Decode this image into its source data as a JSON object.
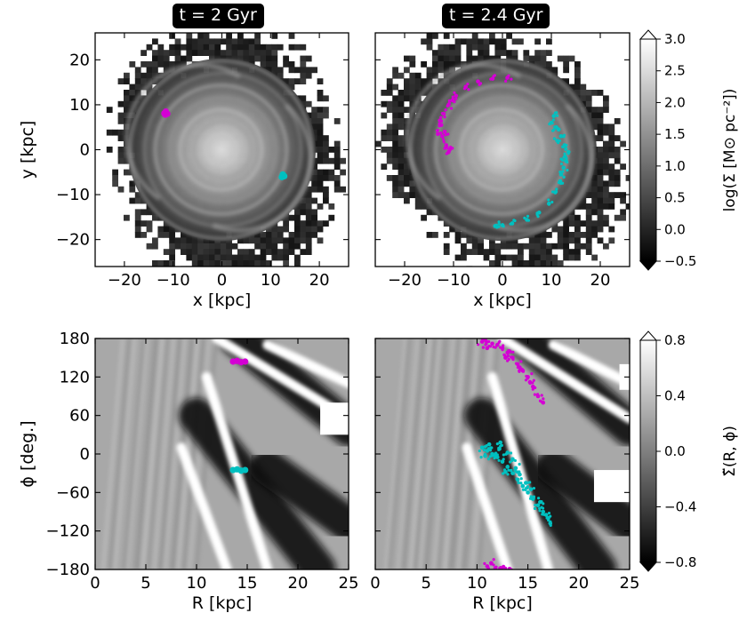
{
  "panels": [
    {
      "id": "top-left",
      "title": "t = 2 Gyr",
      "xlabel": "x [kpc]",
      "ylabel": "y [kpc]",
      "xlim": [
        -26,
        26
      ],
      "ylim": [
        -26,
        26
      ],
      "xticks": [
        -20,
        -10,
        0,
        10,
        20
      ],
      "yticks": [
        -20,
        -10,
        0,
        10,
        20
      ],
      "xtick_labels": [
        "−20",
        "−10",
        "0",
        "10",
        "20"
      ],
      "ytick_labels": [
        "−20",
        "−10",
        "0",
        "10",
        "20"
      ]
    },
    {
      "id": "top-right",
      "title": "t = 2.4 Gyr",
      "xlabel": "x [kpc]",
      "ylabel": "",
      "xlim": [
        -26,
        26
      ],
      "ylim": [
        -26,
        26
      ],
      "xticks": [
        -20,
        -10,
        0,
        10,
        20
      ],
      "yticks": [
        -20,
        -10,
        0,
        10,
        20
      ],
      "xtick_labels": [
        "−20",
        "−10",
        "0",
        "10",
        "20"
      ],
      "ytick_labels": []
    },
    {
      "id": "bottom-left",
      "title": "",
      "xlabel": "R [kpc]",
      "ylabel": "ϕ [deg.]",
      "xlim": [
        0,
        25
      ],
      "ylim": [
        -180,
        180
      ],
      "xticks": [
        0,
        5,
        10,
        15,
        20,
        25
      ],
      "yticks": [
        -180,
        -120,
        -60,
        0,
        60,
        120,
        180
      ],
      "xtick_labels": [
        "0",
        "5",
        "10",
        "15",
        "20",
        "25"
      ],
      "ytick_labels": [
        "−180",
        "−120",
        "−60",
        "0",
        "60",
        "120",
        "180"
      ]
    },
    {
      "id": "bottom-right",
      "title": "",
      "xlabel": "R [kpc]",
      "ylabel": "",
      "xlim": [
        0,
        25
      ],
      "ylim": [
        -180,
        180
      ],
      "xticks": [
        0,
        5,
        10,
        15,
        20,
        25
      ],
      "yticks": [
        -180,
        -120,
        -60,
        0,
        60,
        120,
        180
      ],
      "xtick_labels": [
        "0",
        "5",
        "10",
        "15",
        "20",
        "25"
      ],
      "ytick_labels": []
    }
  ],
  "colorbars": [
    {
      "id": "surface-density",
      "label": "log(Σ [M⊙ pc⁻²])",
      "vmin": -0.5,
      "vmax": 3.0,
      "ticks": [
        -0.5,
        0.0,
        0.5,
        1.0,
        1.5,
        2.0,
        2.5,
        3.0
      ],
      "tick_labels": [
        "−0.5",
        "0.0",
        "0.5",
        "1.0",
        "1.5",
        "2.0",
        "2.5",
        "3.0"
      ],
      "extend": "both"
    },
    {
      "id": "overdensity",
      "label": "Σ̃(R, ϕ)",
      "vmin": -0.8,
      "vmax": 0.8,
      "ticks": [
        -0.8,
        -0.4,
        0.0,
        0.4,
        0.8
      ],
      "tick_labels": [
        "−0.8",
        "−0.4",
        "0.0",
        "0.4",
        "0.8"
      ],
      "extend": "both"
    }
  ],
  "chart_data": [
    {
      "type": "heatmap",
      "panel": "top-left",
      "title": "t = 2 Gyr",
      "xlabel": "x [kpc]",
      "ylabel": "y [kpc]",
      "xlim": [
        -26,
        26
      ],
      "ylim": [
        -26,
        26
      ],
      "colorbar": "surface-density",
      "series": [
        {
          "color": "#d400d4",
          "points": [
            [
              -11.5,
              8.5
            ],
            [
              -11.8,
              8.1
            ],
            [
              -11.2,
              8.0
            ],
            [
              -11.6,
              7.8
            ]
          ]
        },
        {
          "color": "#00c0c0",
          "points": [
            [
              12.5,
              -5.5
            ],
            [
              12.8,
              -5.9
            ],
            [
              12.3,
              -6.1
            ],
            [
              12.6,
              -5.7
            ]
          ]
        }
      ]
    },
    {
      "type": "heatmap",
      "panel": "top-right",
      "title": "t = 2.4 Gyr",
      "xlabel": "x [kpc]",
      "ylabel": "",
      "xlim": [
        -26,
        26
      ],
      "ylim": [
        -26,
        26
      ],
      "colorbar": "surface-density",
      "series": [
        {
          "color": "#d400d4",
          "points": [
            [
              1,
              16
            ],
            [
              -2,
              15.8
            ],
            [
              -5,
              15.2
            ],
            [
              -7.5,
              14
            ],
            [
              -9.5,
              12
            ],
            [
              -11,
              10
            ],
            [
              -12,
              8
            ],
            [
              -12.5,
              5.5
            ],
            [
              -12.3,
              3
            ],
            [
              -11.5,
              1
            ],
            [
              -10.8,
              0
            ],
            [
              -12.8,
              6.5
            ],
            [
              -11.8,
              4
            ],
            [
              -10.2,
              11
            ],
            [
              -13.2,
              3.5
            ],
            [
              -11,
              -0.5
            ]
          ]
        },
        {
          "color": "#00c0c0",
          "points": [
            [
              10,
              6
            ],
            [
              11,
              5
            ],
            [
              12,
              3
            ],
            [
              12.7,
              1
            ],
            [
              12.8,
              -1.5
            ],
            [
              12.5,
              -4
            ],
            [
              11.8,
              -7
            ],
            [
              10.8,
              -9.5
            ],
            [
              9.5,
              -12
            ],
            [
              7.5,
              -14
            ],
            [
              5,
              -15.6
            ],
            [
              2,
              -16.4
            ],
            [
              0,
              -16.8
            ],
            [
              -1.5,
              -17
            ],
            [
              11.2,
              2
            ],
            [
              10.5,
              7.5
            ],
            [
              13,
              -2.5
            ],
            [
              12,
              -5.5
            ],
            [
              13.5,
              -0.5
            ],
            [
              11.5,
              4.5
            ]
          ]
        }
      ]
    },
    {
      "type": "heatmap",
      "panel": "bottom-left",
      "title": "",
      "xlabel": "R [kpc]",
      "ylabel": "ϕ [deg.]",
      "xlim": [
        0,
        25
      ],
      "ylim": [
        -180,
        180
      ],
      "colorbar": "overdensity",
      "series": [
        {
          "color": "#d400d4",
          "points": [
            [
              13.6,
              144
            ],
            [
              14,
              145
            ],
            [
              14.4,
              143
            ],
            [
              14.8,
              144
            ]
          ]
        },
        {
          "color": "#00c0c0",
          "points": [
            [
              13.6,
              -25
            ],
            [
              14,
              -24
            ],
            [
              14.4,
              -26
            ],
            [
              14.8,
              -25
            ]
          ]
        }
      ]
    },
    {
      "type": "heatmap",
      "panel": "bottom-right",
      "title": "",
      "xlabel": "R [kpc]",
      "ylabel": "",
      "xlim": [
        0,
        25
      ],
      "ylim": [
        -180,
        180
      ],
      "colorbar": "overdensity",
      "series": [
        {
          "color": "#d400d4",
          "points": [
            [
              10.5,
              175
            ],
            [
              11.5,
              172
            ],
            [
              12.5,
              165
            ],
            [
              13,
              158
            ],
            [
              13.5,
              150
            ],
            [
              14,
              140
            ],
            [
              14.5,
              130
            ],
            [
              15,
              120
            ],
            [
              15.5,
              105
            ],
            [
              16,
              90
            ],
            [
              16.5,
              80
            ],
            [
              11,
              165
            ],
            [
              12,
              170
            ],
            [
              13.2,
              160
            ],
            [
              14.2,
              135
            ],
            [
              15.2,
              112
            ],
            [
              10.8,
              178
            ],
            [
              12.8,
              150
            ],
            [
              11,
              -175
            ],
            [
              11.8,
              -178
            ],
            [
              12.6,
              -176
            ],
            [
              13.2,
              -179
            ],
            [
              11.4,
              -170
            ]
          ]
        },
        {
          "color": "#00c0c0",
          "points": [
            [
              10.5,
              10
            ],
            [
              11,
              5
            ],
            [
              11.5,
              0
            ],
            [
              12,
              -5
            ],
            [
              12.5,
              -12
            ],
            [
              13,
              -20
            ],
            [
              13.5,
              -30
            ],
            [
              14,
              -40
            ],
            [
              14.5,
              -50
            ],
            [
              15,
              -60
            ],
            [
              15.5,
              -70
            ],
            [
              16,
              -80
            ],
            [
              16.5,
              -90
            ],
            [
              17,
              -100
            ],
            [
              17.2,
              -108
            ],
            [
              11.2,
              15
            ],
            [
              12.2,
              8
            ],
            [
              13,
              2
            ],
            [
              13.5,
              -8
            ],
            [
              12.8,
              -28
            ],
            [
              14.2,
              -32
            ],
            [
              15.3,
              -55
            ],
            [
              16.2,
              -75
            ],
            [
              11.8,
              -2
            ],
            [
              13.8,
              -22
            ],
            [
              12.3,
              18
            ],
            [
              10.8,
              -3
            ],
            [
              14.8,
              -45
            ],
            [
              16.8,
              -95
            ]
          ]
        }
      ]
    }
  ]
}
